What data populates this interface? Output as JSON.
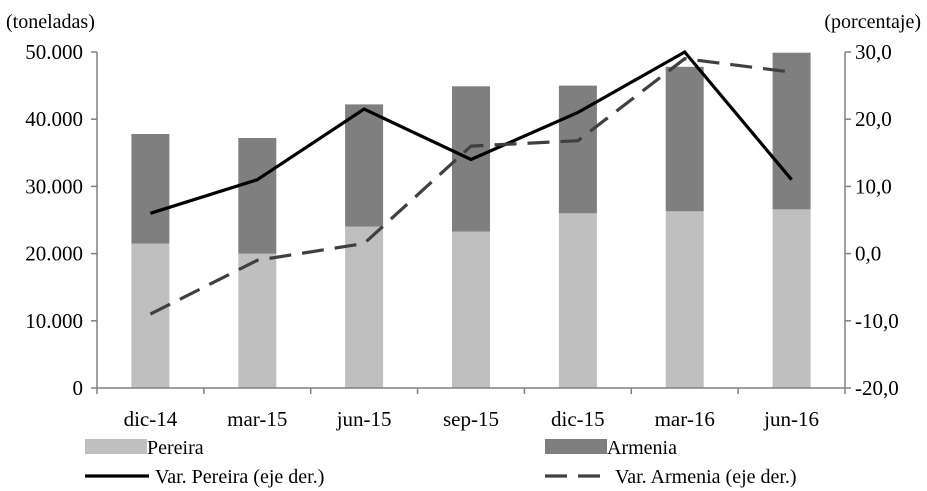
{
  "chart_data": {
    "type": "bar",
    "categories": [
      "dic-14",
      "mar-15",
      "jun-15",
      "sep-15",
      "dic-15",
      "mar-16",
      "jun-16"
    ],
    "y_left_label": "(toneladas)",
    "y_right_label": "(porcentaje)",
    "y_left_lim": [
      0,
      50000
    ],
    "y_right_lim": [
      -20,
      30
    ],
    "y_left_ticks": [
      "0",
      "10.000",
      "20.000",
      "30.000",
      "40.000",
      "50.000"
    ],
    "y_right_ticks": [
      "-20,0",
      "-10,0",
      "0,0",
      "10,0",
      "20,0",
      "30,0"
    ],
    "grid": false,
    "legend_position": "bottom",
    "bar_series": [
      {
        "name": "Pereira",
        "color": "#bfbfbf",
        "values": [
          21500,
          20000,
          24000,
          23300,
          26000,
          26300,
          26600
        ]
      },
      {
        "name": "Armenia",
        "color": "#7f7f7f",
        "values": [
          16300,
          17200,
          18200,
          21600,
          19000,
          21500,
          23300
        ]
      }
    ],
    "line_series": [
      {
        "name": "Var. Pereira (eje der.)",
        "axis": "right",
        "style": "solid",
        "color": "#000000",
        "values": [
          6.0,
          11.0,
          21.5,
          14.0,
          21.0,
          30.0,
          11.0
        ]
      },
      {
        "name": "Var. Armenia (eje der.)",
        "axis": "right",
        "style": "dashed",
        "color": "#404040",
        "values": [
          -9.0,
          -1.0,
          1.5,
          16.0,
          16.8,
          29.0,
          27.0
        ]
      }
    ]
  }
}
